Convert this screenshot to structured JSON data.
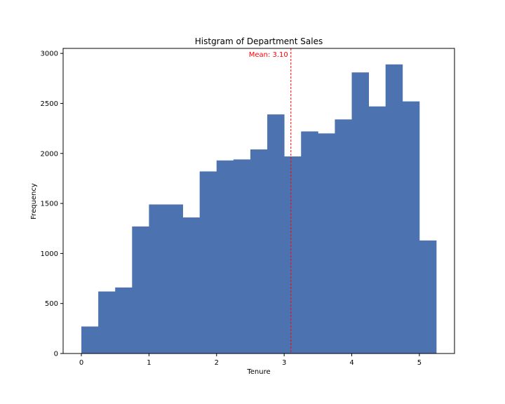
{
  "chart_data": {
    "type": "bar",
    "title": "Histgram of Department Sales",
    "xlabel": "Tenure",
    "ylabel": "Frequency",
    "bin_width": 0.25,
    "bins": [
      {
        "start": 0.0,
        "end": 0.25,
        "count": 270
      },
      {
        "start": 0.25,
        "end": 0.5,
        "count": 620
      },
      {
        "start": 0.5,
        "end": 0.75,
        "count": 660
      },
      {
        "start": 0.75,
        "end": 1.0,
        "count": 1270
      },
      {
        "start": 1.0,
        "end": 1.25,
        "count": 1490
      },
      {
        "start": 1.25,
        "end": 1.5,
        "count": 1490
      },
      {
        "start": 1.5,
        "end": 1.75,
        "count": 1360
      },
      {
        "start": 1.75,
        "end": 2.0,
        "count": 1820
      },
      {
        "start": 2.0,
        "end": 2.25,
        "count": 1930
      },
      {
        "start": 2.25,
        "end": 2.5,
        "count": 1940
      },
      {
        "start": 2.5,
        "end": 2.75,
        "count": 2040
      },
      {
        "start": 2.75,
        "end": 3.0,
        "count": 2390
      },
      {
        "start": 3.0,
        "end": 3.25,
        "count": 1970
      },
      {
        "start": 3.25,
        "end": 3.5,
        "count": 2220
      },
      {
        "start": 3.5,
        "end": 3.75,
        "count": 2200
      },
      {
        "start": 3.75,
        "end": 4.0,
        "count": 2340
      },
      {
        "start": 4.0,
        "end": 4.25,
        "count": 2810
      },
      {
        "start": 4.25,
        "end": 4.5,
        "count": 2470
      },
      {
        "start": 4.5,
        "end": 4.75,
        "count": 2890
      },
      {
        "start": 4.75,
        "end": 5.0,
        "count": 2520
      },
      {
        "start": 5.0,
        "end": 5.25,
        "count": 1130
      }
    ],
    "xlim": [
      -0.27,
      5.52
    ],
    "ylim": [
      0,
      3050
    ],
    "xticks": [
      0,
      1,
      2,
      3,
      4,
      5
    ],
    "yticks": [
      0,
      500,
      1000,
      1500,
      2000,
      2500,
      3000
    ],
    "mean": 3.1,
    "mean_label": "Mean: 3.10",
    "bar_color": "#4c72b0",
    "mean_color": "#ff0000",
    "grid": false
  }
}
